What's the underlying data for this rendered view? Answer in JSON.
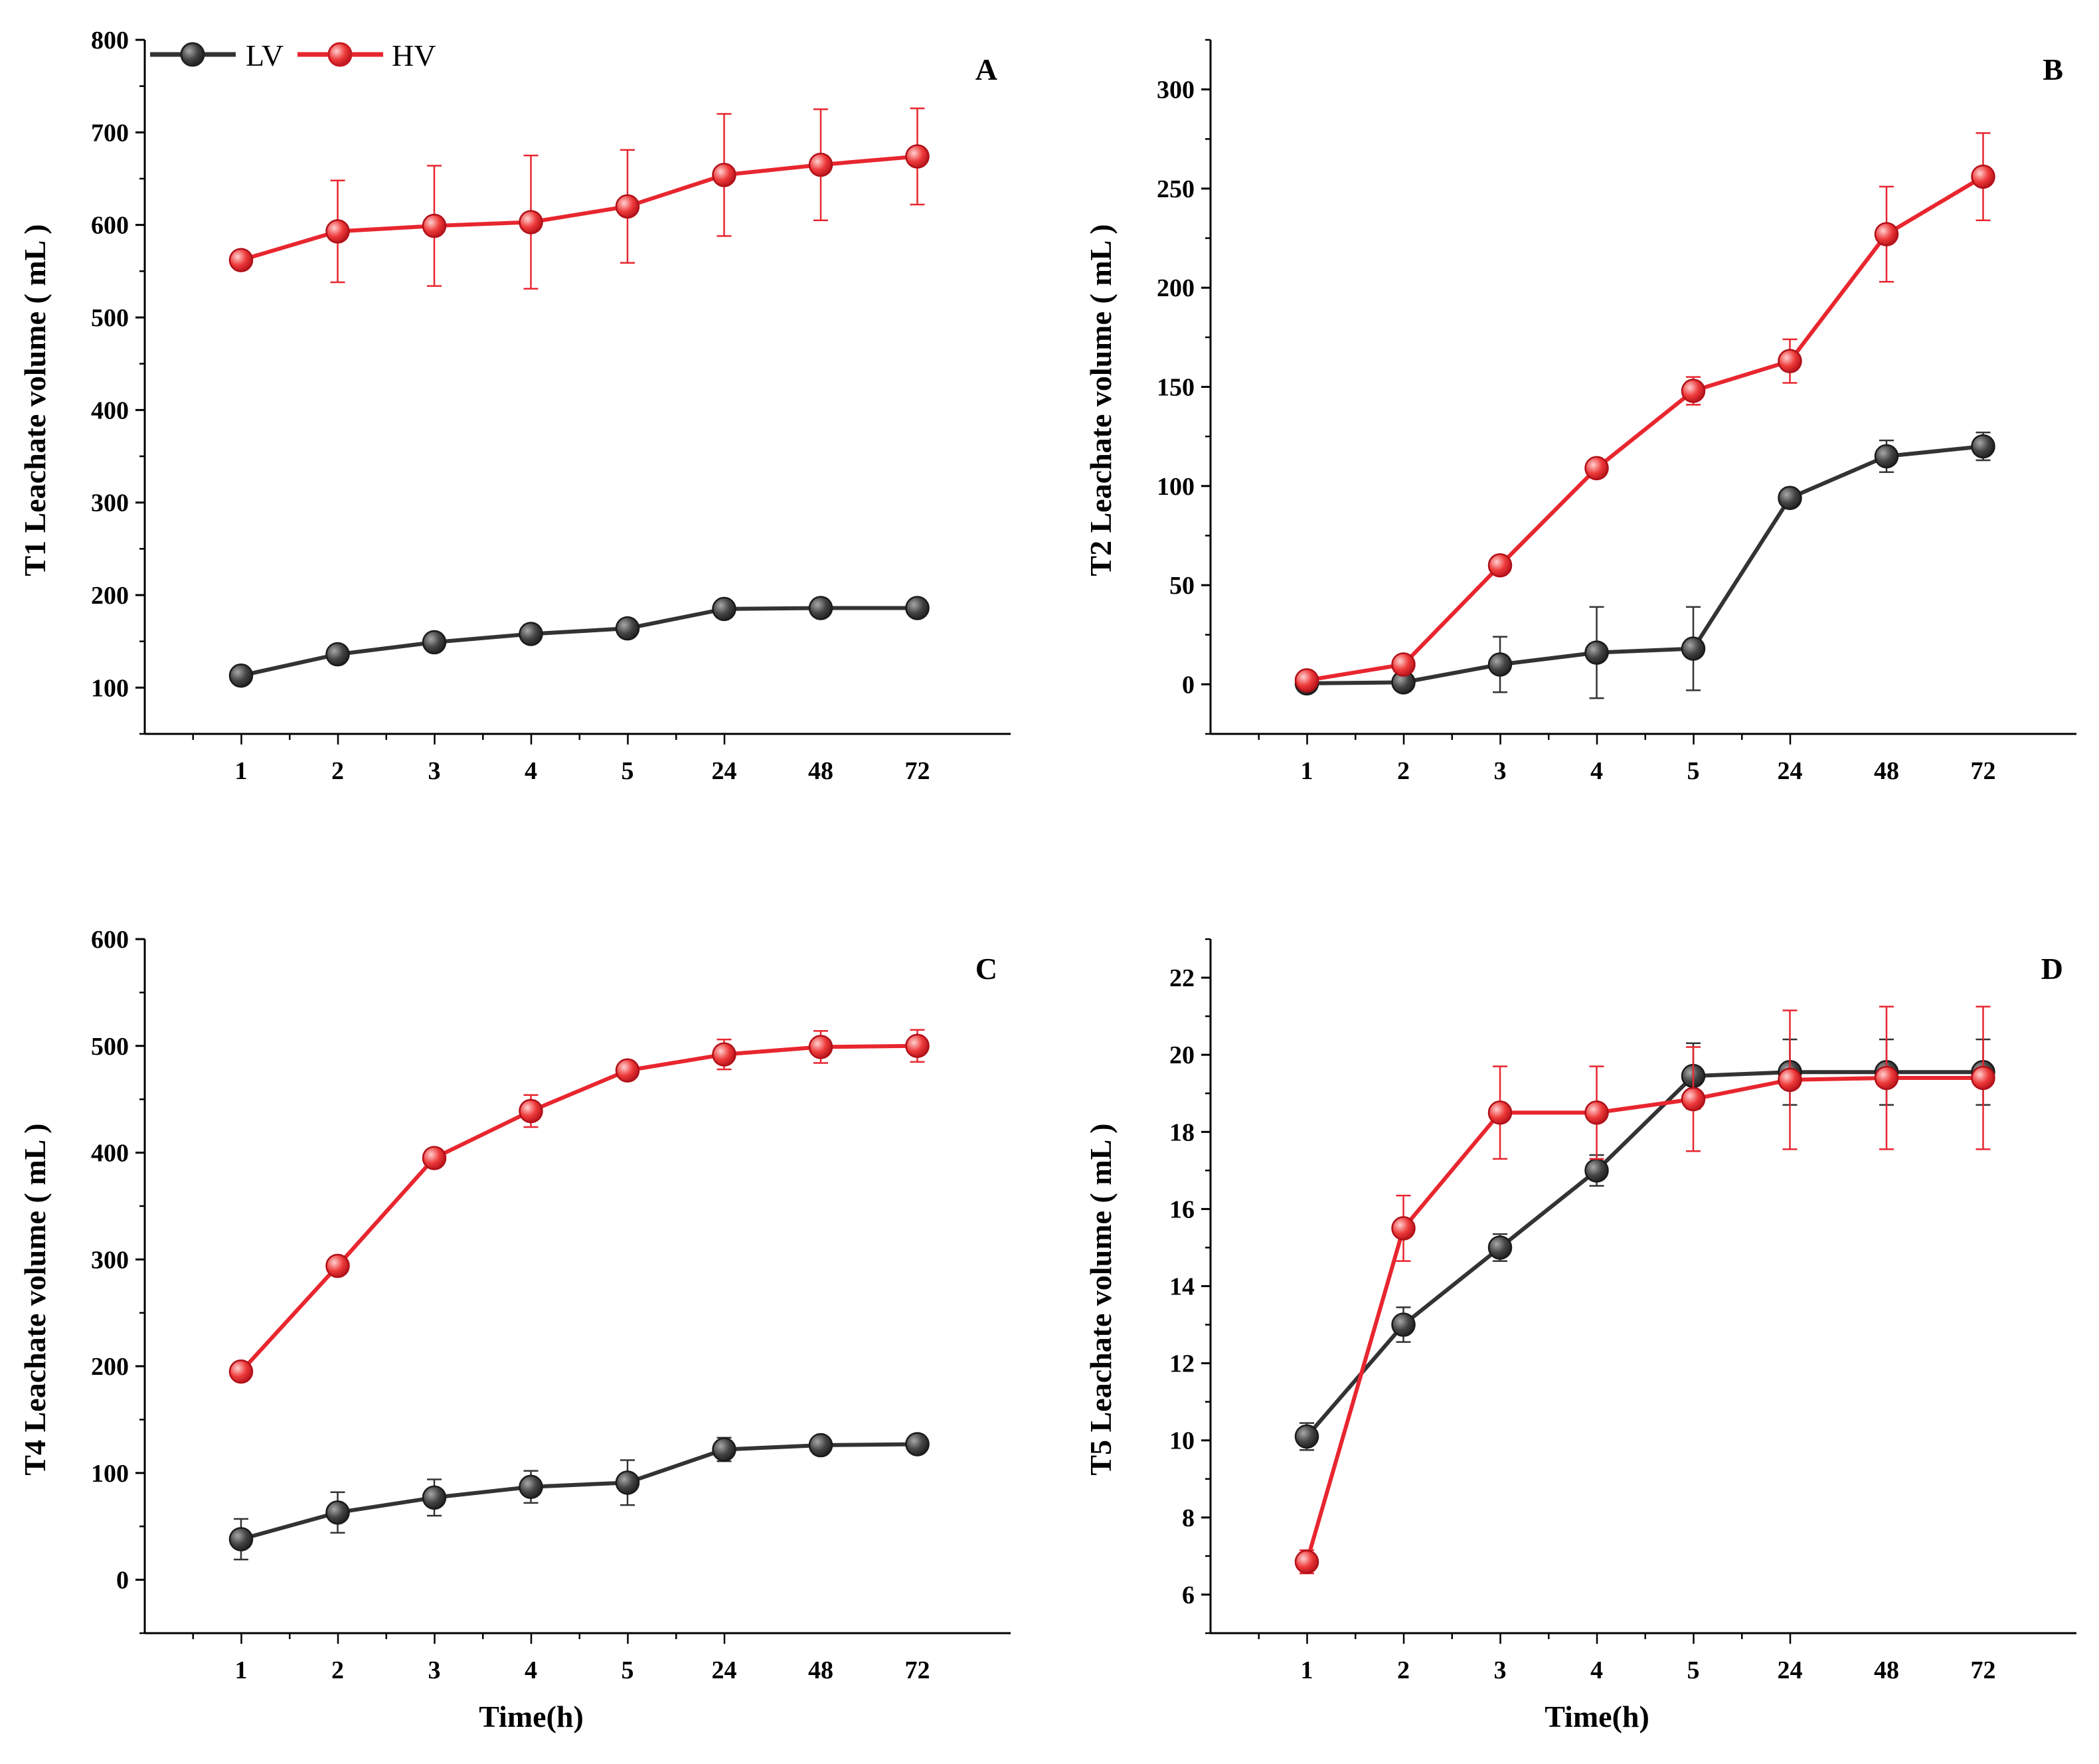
{
  "colors": {
    "LV": "#333333",
    "HV": "#e8262f"
  },
  "legend": {
    "lv": "LV",
    "hv": "HV"
  },
  "chart_data": [
    {
      "type": "line",
      "panel": "A",
      "xlabel": "",
      "ylabel": "T1 Leachate volume ( mL )",
      "categories": [
        "1",
        "2",
        "3",
        "4",
        "5",
        "24",
        "48",
        "72"
      ],
      "ylim": [
        50,
        800
      ],
      "yticks": [
        100,
        200,
        300,
        400,
        500,
        600,
        700,
        800
      ],
      "series": [
        {
          "name": "LV",
          "values": [
            113,
            136,
            149,
            158,
            164,
            185,
            186,
            186
          ],
          "errors": [
            5,
            5,
            4,
            5,
            5,
            6,
            5,
            5
          ]
        },
        {
          "name": "HV",
          "values": [
            562,
            593,
            599,
            603,
            620,
            654,
            665,
            674
          ],
          "errors": [
            5,
            55,
            65,
            72,
            61,
            66,
            60,
            52
          ]
        }
      ]
    },
    {
      "type": "line",
      "panel": "B",
      "xlabel": "",
      "ylabel": "T2 Leachate volume ( mL )",
      "categories": [
        "1",
        "2",
        "3",
        "4",
        "5",
        "24",
        "48",
        "72"
      ],
      "ylim": [
        -25,
        325
      ],
      "yticks": [
        0,
        50,
        100,
        150,
        200,
        250,
        300
      ],
      "series": [
        {
          "name": "LV",
          "values": [
            0.5,
            1,
            10,
            16,
            18,
            94,
            115,
            120
          ],
          "errors": [
            1,
            1,
            14,
            23,
            21,
            4,
            8,
            7
          ]
        },
        {
          "name": "HV",
          "values": [
            2,
            10,
            60,
            109,
            148,
            163,
            227,
            256
          ],
          "errors": [
            1,
            2,
            4,
            3,
            7,
            11,
            24,
            22
          ]
        }
      ]
    },
    {
      "type": "line",
      "panel": "C",
      "xlabel": "Time(h)",
      "ylabel": "T4 Leachate volume ( mL )",
      "categories": [
        "1",
        "2",
        "3",
        "4",
        "5",
        "24",
        "48",
        "72"
      ],
      "ylim": [
        -50,
        600
      ],
      "yticks": [
        0,
        100,
        200,
        300,
        400,
        500,
        600
      ],
      "series": [
        {
          "name": "LV",
          "values": [
            38,
            63,
            77,
            87,
            91,
            122,
            126,
            127
          ],
          "errors": [
            19,
            19,
            17,
            15,
            21,
            11,
            5,
            4
          ]
        },
        {
          "name": "HV",
          "values": [
            195,
            294,
            395,
            439,
            477,
            492,
            499,
            500
          ],
          "errors": [
            6,
            6,
            8,
            15,
            7,
            14,
            15,
            15
          ]
        }
      ]
    },
    {
      "type": "line",
      "panel": "D",
      "xlabel": "Time(h)",
      "ylabel": "T5 Leachate volume ( mL )",
      "categories": [
        "1",
        "2",
        "3",
        "4",
        "5",
        "24",
        "48",
        "72"
      ],
      "ylim": [
        5,
        23
      ],
      "yticks": [
        6,
        8,
        10,
        12,
        14,
        16,
        18,
        20,
        22
      ],
      "series": [
        {
          "name": "LV",
          "values": [
            10.1,
            13.0,
            15.0,
            17.0,
            19.45,
            19.55,
            19.55,
            19.55
          ],
          "errors": [
            0.35,
            0.45,
            0.35,
            0.4,
            0.85,
            0.85,
            0.85,
            0.85
          ]
        },
        {
          "name": "HV",
          "values": [
            6.85,
            15.5,
            18.5,
            18.5,
            18.85,
            19.35,
            19.4,
            19.4
          ],
          "errors": [
            0.3,
            0.85,
            1.2,
            1.2,
            1.35,
            1.8,
            1.85,
            1.85
          ]
        }
      ]
    }
  ]
}
